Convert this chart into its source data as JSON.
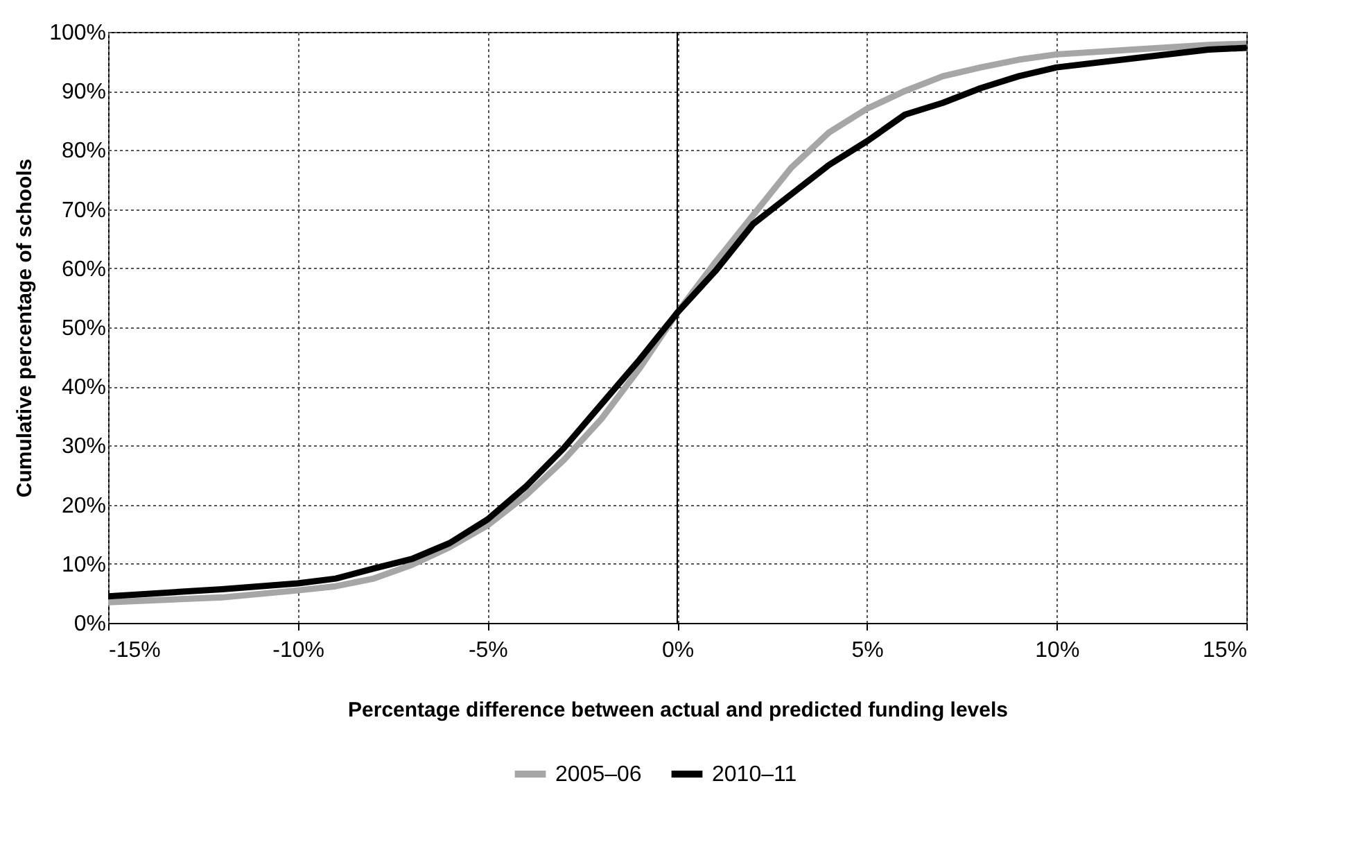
{
  "chart_data": {
    "type": "line",
    "xlabel": "Percentage difference between actual and predicted funding levels",
    "ylabel": "Cumulative percentage of schools",
    "x": [
      -15,
      -12,
      -10,
      -9,
      -8,
      -7,
      -6,
      -5,
      -4,
      -3,
      -2,
      -1,
      0,
      1,
      2,
      3,
      4,
      5,
      6,
      7,
      8,
      9,
      10,
      12,
      14,
      15
    ],
    "series": [
      {
        "name": "2005–06",
        "color": "#a6a6a6",
        "values": [
          3.5,
          4.3,
          5.5,
          6.2,
          7.5,
          9.8,
          12.8,
          16.5,
          21.5,
          27.5,
          34.5,
          43,
          52.5,
          61,
          69,
          77,
          83,
          87,
          90,
          92.5,
          94,
          95.3,
          96.2,
          97,
          97.8,
          98
        ]
      },
      {
        "name": "2010–11",
        "color": "#000000",
        "values": [
          4.5,
          5.7,
          6.7,
          7.5,
          9.2,
          10.8,
          13.5,
          17.5,
          23,
          29.5,
          37,
          44.5,
          52.5,
          59.5,
          67.5,
          72.5,
          77.5,
          81.5,
          86,
          88,
          90.5,
          92.5,
          94,
          95.5,
          97,
          97.3
        ]
      }
    ],
    "xlim": [
      -15,
      15
    ],
    "xticks": [
      {
        "value": -15,
        "label": "-15%"
      },
      {
        "value": -10,
        "label": "-10%"
      },
      {
        "value": -5,
        "label": "-5%"
      },
      {
        "value": 0,
        "label": "0%"
      },
      {
        "value": 5,
        "label": "5%"
      },
      {
        "value": 10,
        "label": "10%"
      },
      {
        "value": 15,
        "label": "15%"
      }
    ],
    "ylim": [
      0,
      100
    ],
    "yticks": [
      {
        "value": 0,
        "label": "0%"
      },
      {
        "value": 10,
        "label": "10%"
      },
      {
        "value": 20,
        "label": "20%"
      },
      {
        "value": 30,
        "label": "30%"
      },
      {
        "value": 40,
        "label": "40%"
      },
      {
        "value": 50,
        "label": "50%"
      },
      {
        "value": 60,
        "label": "60%"
      },
      {
        "value": 70,
        "label": "70%"
      },
      {
        "value": 80,
        "label": "80%"
      },
      {
        "value": 90,
        "label": "90%"
      },
      {
        "value": 100,
        "label": "100%"
      }
    ],
    "ref_lines": [
      {
        "axis": "x",
        "value": 0,
        "color": "#000000",
        "line_style": "solid"
      }
    ],
    "grid": true,
    "legend": "bottom",
    "marker": "none",
    "line_style": "solid"
  }
}
